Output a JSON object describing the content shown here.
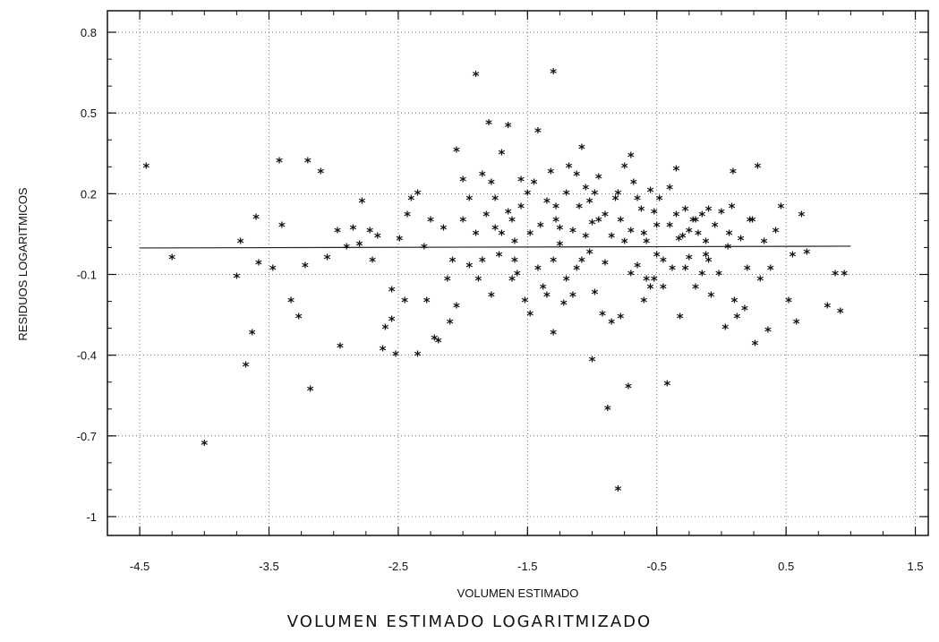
{
  "caption": "VOLUMEN ESTIMADO LOGARITMIZADO",
  "chart_data": {
    "type": "scatter",
    "xlabel": "VOLUMEN ESTIMADO",
    "ylabel": "RESIDUOS LOGARITMICOS",
    "xlim": [
      -4.75,
      1.6
    ],
    "ylim": [
      -1.07,
      0.88
    ],
    "x_ticks": [
      -4.5,
      -3.5,
      -2.5,
      -1.5,
      -0.5,
      0.5,
      1.5
    ],
    "x_tick_labels": [
      "-4.5",
      "-3.5",
      "-2.5",
      "-1.5",
      "-0.5",
      "0.5",
      "1.5"
    ],
    "y_ticks": [
      0.8,
      0.5,
      0.2,
      -0.1,
      -0.4,
      -0.7,
      -1
    ],
    "y_tick_labels": [
      "0.8",
      "0.5",
      "0.2",
      "-0.1",
      "-0.4",
      "-0.7",
      "-1"
    ],
    "grid": true,
    "reference_line_y": 0.0,
    "marker": "*",
    "points": [
      [
        -4.45,
        0.3
      ],
      [
        -4.25,
        -0.04
      ],
      [
        -4.0,
        -0.73
      ],
      [
        -3.75,
        -0.11
      ],
      [
        -3.72,
        0.02
      ],
      [
        -3.68,
        -0.44
      ],
      [
        -3.63,
        -0.32
      ],
      [
        -3.6,
        0.11
      ],
      [
        -3.58,
        -0.06
      ],
      [
        -3.47,
        -0.08
      ],
      [
        -3.42,
        0.32
      ],
      [
        -3.4,
        0.08
      ],
      [
        -3.33,
        -0.2
      ],
      [
        -3.27,
        -0.26
      ],
      [
        -3.22,
        -0.07
      ],
      [
        -3.2,
        0.32
      ],
      [
        -3.1,
        0.28
      ],
      [
        -3.05,
        -0.04
      ],
      [
        -2.97,
        0.06
      ],
      [
        -2.9,
        0.0
      ],
      [
        -2.85,
        0.07
      ],
      [
        -2.8,
        0.01
      ],
      [
        -2.78,
        0.17
      ],
      [
        -2.72,
        0.06
      ],
      [
        -2.66,
        0.04
      ],
      [
        -2.6,
        -0.3
      ],
      [
        -2.55,
        -0.27
      ],
      [
        -2.49,
        0.03
      ],
      [
        -2.43,
        0.12
      ],
      [
        -2.4,
        0.18
      ],
      [
        -2.35,
        0.2
      ],
      [
        -2.28,
        -0.2
      ],
      [
        -2.22,
        -0.34
      ],
      [
        -2.19,
        -0.35
      ],
      [
        -2.1,
        -0.28
      ],
      [
        -2.05,
        -0.22
      ],
      [
        -2.0,
        0.1
      ],
      [
        -1.95,
        -0.07
      ],
      [
        -3.18,
        -0.53
      ],
      [
        -2.95,
        -0.37
      ],
      [
        -2.62,
        -0.38
      ],
      [
        -2.52,
        -0.4
      ],
      [
        -2.35,
        -0.4
      ],
      [
        -1.9,
        0.05
      ],
      [
        -1.85,
        -0.05
      ],
      [
        -1.82,
        0.12
      ],
      [
        -1.78,
        0.24
      ],
      [
        -1.75,
        0.07
      ],
      [
        -1.72,
        -0.03
      ],
      [
        -1.7,
        0.35
      ],
      [
        -1.65,
        0.13
      ],
      [
        -1.62,
        -0.12
      ],
      [
        -1.6,
        0.02
      ],
      [
        -1.55,
        0.25
      ],
      [
        -1.52,
        -0.2
      ],
      [
        -1.48,
        0.05
      ],
      [
        -1.45,
        0.24
      ],
      [
        -1.42,
        0.43
      ],
      [
        -1.4,
        0.08
      ],
      [
        -1.38,
        -0.15
      ],
      [
        -1.35,
        0.17
      ],
      [
        -1.32,
        0.28
      ],
      [
        -1.3,
        -0.05
      ],
      [
        -1.28,
        0.1
      ],
      [
        -1.25,
        0.01
      ],
      [
        -1.22,
        -0.21
      ],
      [
        -1.2,
        0.2
      ],
      [
        -1.18,
        0.3
      ],
      [
        -1.15,
        0.06
      ],
      [
        -1.12,
        -0.08
      ],
      [
        -1.1,
        0.15
      ],
      [
        -1.08,
        0.37
      ],
      [
        -1.05,
        0.22
      ],
      [
        -1.02,
        -0.02
      ],
      [
        -1.0,
        0.09
      ],
      [
        -0.98,
        -0.17
      ],
      [
        -0.95,
        0.26
      ],
      [
        -0.92,
        -0.25
      ],
      [
        -0.9,
        0.12
      ],
      [
        -0.88,
        -0.6
      ],
      [
        -0.85,
        0.04
      ],
      [
        -0.82,
        0.18
      ],
      [
        -0.8,
        -0.9
      ],
      [
        -0.78,
        -0.26
      ],
      [
        -0.75,
        0.3
      ],
      [
        -0.72,
        -0.52
      ],
      [
        -0.7,
        0.06
      ],
      [
        -0.68,
        0.24
      ],
      [
        -0.65,
        -0.07
      ],
      [
        -0.62,
        0.14
      ],
      [
        -0.6,
        -0.2
      ],
      [
        -0.58,
        0.02
      ],
      [
        -0.55,
        0.21
      ],
      [
        -0.52,
        -0.12
      ],
      [
        -0.5,
        0.08
      ],
      [
        -0.48,
        0.18
      ],
      [
        -0.45,
        -0.15
      ],
      [
        -0.42,
        -0.51
      ],
      [
        -0.4,
        0.22
      ],
      [
        -0.38,
        -0.08
      ],
      [
        -0.35,
        0.12
      ],
      [
        -0.32,
        -0.26
      ],
      [
        -0.3,
        0.04
      ],
      [
        -0.28,
        0.14
      ],
      [
        -0.25,
        -0.04
      ],
      [
        -0.22,
        0.1
      ],
      [
        -0.2,
        -0.15
      ],
      [
        -0.18,
        0.05
      ],
      [
        -0.15,
        0.12
      ],
      [
        -0.12,
        -0.03
      ],
      [
        -0.1,
        0.14
      ],
      [
        -0.08,
        -0.18
      ],
      [
        -0.05,
        0.08
      ],
      [
        -0.02,
        -0.1
      ],
      [
        0.0,
        0.13
      ],
      [
        0.03,
        -0.3
      ],
      [
        0.06,
        0.05
      ],
      [
        0.09,
        0.28
      ],
      [
        0.12,
        -0.26
      ],
      [
        0.15,
        0.03
      ],
      [
        0.18,
        -0.23
      ],
      [
        0.2,
        -0.08
      ],
      [
        0.24,
        0.1
      ],
      [
        0.26,
        -0.36
      ],
      [
        0.3,
        -0.12
      ],
      [
        0.33,
        0.02
      ],
      [
        0.36,
        -0.31
      ],
      [
        0.42,
        0.06
      ],
      [
        0.46,
        0.15
      ],
      [
        0.52,
        -0.2
      ],
      [
        0.55,
        -0.03
      ],
      [
        0.58,
        -0.28
      ],
      [
        0.62,
        0.12
      ],
      [
        0.66,
        -0.02
      ],
      [
        0.82,
        -0.22
      ],
      [
        0.88,
        -0.1
      ],
      [
        0.92,
        -0.24
      ],
      [
        0.95,
        -0.1
      ],
      [
        -1.9,
        0.64
      ],
      [
        -1.3,
        0.65
      ],
      [
        -1.65,
        0.45
      ],
      [
        -1.8,
        0.46
      ],
      [
        -1.12,
        0.27
      ],
      [
        -0.7,
        0.34
      ],
      [
        -0.35,
        0.29
      ],
      [
        0.28,
        0.3
      ],
      [
        -2.05,
        0.36
      ],
      [
        -1.85,
        0.27
      ],
      [
        -1.0,
        -0.42
      ],
      [
        -1.3,
        -0.32
      ],
      [
        -1.15,
        -0.18
      ],
      [
        -1.6,
        -0.05
      ],
      [
        -1.7,
        0.05
      ],
      [
        -1.42,
        -0.08
      ],
      [
        -1.25,
        0.07
      ],
      [
        -1.05,
        0.04
      ],
      [
        -0.9,
        -0.06
      ],
      [
        -0.75,
        0.02
      ],
      [
        -0.6,
        0.05
      ],
      [
        -0.5,
        -0.03
      ],
      [
        -0.25,
        0.06
      ],
      [
        -0.1,
        -0.05
      ],
      [
        0.05,
        0.0
      ],
      [
        -2.15,
        0.07
      ],
      [
        -2.3,
        0.0
      ],
      [
        -2.45,
        -0.2
      ],
      [
        -2.55,
        -0.16
      ],
      [
        -2.7,
        -0.05
      ],
      [
        -1.95,
        0.18
      ],
      [
        -1.55,
        0.15
      ],
      [
        -1.48,
        -0.25
      ],
      [
        -1.35,
        -0.18
      ],
      [
        -0.85,
        -0.28
      ],
      [
        -0.55,
        -0.15
      ],
      [
        -0.15,
        -0.1
      ],
      [
        0.1,
        -0.2
      ],
      [
        -2.0,
        0.25
      ],
      [
        -1.75,
        0.18
      ],
      [
        -2.25,
        0.1
      ],
      [
        -1.5,
        0.2
      ],
      [
        -0.8,
        0.2
      ],
      [
        -0.65,
        0.18
      ],
      [
        -0.4,
        0.08
      ],
      [
        -0.2,
        0.1
      ],
      [
        0.22,
        0.1
      ],
      [
        -1.2,
        -0.12
      ],
      [
        -0.95,
        0.1
      ],
      [
        -0.7,
        -0.1
      ],
      [
        -0.45,
        -0.05
      ],
      [
        -1.88,
        -0.12
      ],
      [
        -2.08,
        -0.05
      ],
      [
        -1.58,
        -0.1
      ],
      [
        -1.08,
        -0.05
      ],
      [
        -0.58,
        -0.12
      ],
      [
        -0.33,
        0.03
      ],
      [
        0.38,
        -0.08
      ],
      [
        -1.78,
        -0.18
      ],
      [
        -1.28,
        0.15
      ],
      [
        -0.98,
        0.2
      ],
      [
        -0.78,
        0.1
      ],
      [
        -0.28,
        -0.08
      ],
      [
        0.08,
        0.15
      ],
      [
        -2.12,
        -0.12
      ],
      [
        -1.62,
        0.1
      ],
      [
        -1.02,
        0.17
      ],
      [
        -0.52,
        0.13
      ],
      [
        -0.12,
        0.02
      ]
    ]
  }
}
